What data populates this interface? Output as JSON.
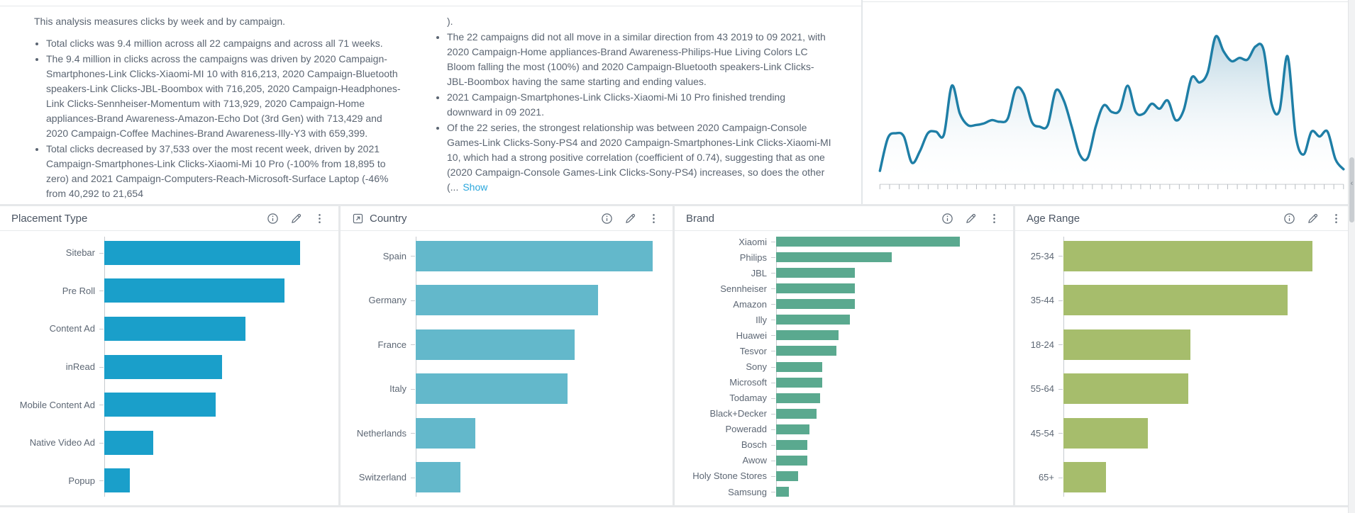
{
  "analysis": {
    "intro": "This analysis measures clicks by week and by campaign.",
    "column1_bullets": [
      "Total clicks was 9.4 million across all 22 campaigns and across all 71 weeks.",
      "The 9.4 million in clicks across the campaigns was driven by 2020 Campaign-Smartphones-Link Clicks-Xiaomi-MI 10 with 816,213, 2020 Campaign-Bluetooth speakers-Link Clicks-JBL-Boombox with 716,205, 2020 Campaign-Headphones-Link Clicks-Sennheiser-Momentum with 713,929, 2020 Campaign-Home appliances-Brand Awareness-Amazon-Echo Dot (3rd Gen) with 713,429 and 2020 Campaign-Coffee Machines-Brand Awareness-Illy-Y3 with 659,399.",
      "Total clicks decreased by 37,533 over the most recent week, driven by 2021 Campaign-Smartphones-Link Clicks-Xiaomi-Mi 10 Pro (-100% from 18,895 to zero) and 2021 Campaign-Computers-Reach-Microsoft-Surface Laptop (-46% from 40,292 to 21,654"
    ],
    "column2_continuation": ").",
    "column2_bullets": [
      "The 22 campaigns did not all move in a similar direction from 43 2019 to 09 2021, with 2020 Campaign-Home appliances-Brand Awareness-Philips-Hue Living Colors LC Bloom falling the most (100%) and 2020 Campaign-Bluetooth speakers-Link Clicks-JBL-Boombox having the same starting and ending values.",
      "2021 Campaign-Smartphones-Link Clicks-Xiaomi-Mi 10 Pro finished trending downward in 09 2021.",
      "Of the 22 series, the strongest relationship was between 2020 Campaign-Console Games-Link Clicks-Sony-PS4 and 2020 Campaign-Smartphones-Link Clicks-Xiaomi-MI 10, which had a strong positive correlation (coefficient of 0.74), suggesting that as one (2020 Campaign-Console Games-Link Clicks-Sony-PS4) increases, so does the other (..."
    ],
    "show_link_label": "Show"
  },
  "panels": [
    {
      "title": "Placement Type",
      "chart": "placement-type",
      "bar_color": "#1a9fca",
      "header_icons": [
        "info-icon",
        "edit-icon",
        "menu-icon"
      ]
    },
    {
      "title": "Country",
      "chart": "country",
      "bar_color": "#63b8cb",
      "leading_icon": "open-link-icon",
      "header_icons": [
        "info-icon",
        "edit-icon",
        "menu-icon"
      ]
    },
    {
      "title": "Brand",
      "chart": "brand",
      "bar_color": "#5aa98f",
      "header_icons": [
        "info-icon",
        "edit-icon",
        "menu-icon"
      ]
    },
    {
      "title": "Age Range",
      "chart": "age-range",
      "bar_color": "#a6bd6c",
      "header_icons": [
        "info-icon",
        "edit-icon",
        "menu-icon"
      ]
    }
  ],
  "chart_data": [
    {
      "id": "clicks-trend",
      "type": "area",
      "title": "",
      "xlabel": "",
      "ylabel": "",
      "tick_count": 48,
      "legend": false,
      "line_color": "#1e7ea6",
      "fill_top_color": "#a9cbdc",
      "fill_bottom_color": "#ffffff",
      "y_values_pct": [
        3,
        23,
        26,
        24,
        8,
        15,
        26,
        27,
        25,
        55,
        38,
        31,
        31,
        32,
        34,
        33,
        35,
        53,
        50,
        33,
        30,
        31,
        52,
        46,
        30,
        13,
        11,
        30,
        43,
        39,
        40,
        55,
        39,
        38,
        44,
        41,
        46,
        34,
        40,
        60,
        57,
        63,
        85,
        76,
        70,
        72,
        71,
        79,
        77,
        44,
        40,
        73,
        25,
        13,
        27,
        24,
        27,
        10,
        4
      ]
    },
    {
      "id": "placement-type",
      "type": "bar",
      "orientation": "horizontal",
      "categories": [
        "Sitebar",
        "Pre Roll",
        "Content Ad",
        "inRead",
        "Mobile Content Ad",
        "Native Video Ad",
        "Popup"
      ],
      "values_pct_of_max": [
        100,
        92,
        72,
        60,
        57,
        25,
        13
      ]
    },
    {
      "id": "country",
      "type": "bar",
      "orientation": "horizontal",
      "categories": [
        "Spain",
        "Germany",
        "France",
        "Italy",
        "Netherlands",
        "Switzerland"
      ],
      "values_pct_of_max": [
        100,
        77,
        67,
        64,
        25,
        19
      ]
    },
    {
      "id": "brand",
      "type": "bar",
      "orientation": "horizontal",
      "categories": [
        "Xiaomi",
        "Philips",
        "JBL",
        "Sennheiser",
        "Amazon",
        "Illy",
        "Huawei",
        "Tesvor",
        "Sony",
        "Microsoft",
        "Todamay",
        "Black+Decker",
        "Poweradd",
        "Bosch",
        "Awow",
        "Holy Stone Stores",
        "Samsung"
      ],
      "values_pct_of_max": [
        100,
        63,
        43,
        43,
        43,
        40,
        34,
        33,
        25,
        25,
        24,
        22,
        18,
        17,
        17,
        12,
        7
      ]
    },
    {
      "id": "age-range",
      "type": "bar",
      "orientation": "horizontal",
      "categories": [
        "25-34",
        "35-44",
        "18-24",
        "55-64",
        "45-54",
        "65+"
      ],
      "values_pct_of_max": [
        100,
        90,
        51,
        50,
        34,
        17
      ]
    }
  ]
}
